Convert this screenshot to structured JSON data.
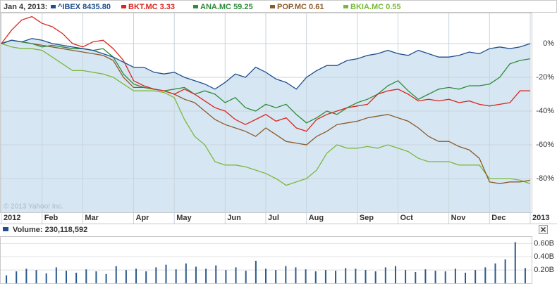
{
  "chart_data": [
    {
      "type": "line",
      "date_label": "Jan 4, 2013:",
      "annotation": "© 2013 Yahoo! Inc.",
      "categories": [
        "2012",
        null,
        null,
        null,
        "Feb",
        null,
        null,
        null,
        "Mar",
        null,
        null,
        null,
        null,
        "Apr",
        null,
        null,
        null,
        "May",
        null,
        null,
        null,
        null,
        "Jun",
        null,
        null,
        null,
        "Jul",
        null,
        null,
        null,
        "Aug",
        null,
        null,
        null,
        null,
        "Sep",
        null,
        null,
        null,
        "Oct",
        null,
        null,
        null,
        null,
        "Nov",
        null,
        null,
        null,
        "Dec",
        null,
        null,
        null,
        "2013"
      ],
      "ylim": [
        -100,
        20
      ],
      "yticks": [
        {
          "value": 0,
          "label": "0%"
        },
        {
          "value": -20,
          "label": "-20%"
        },
        {
          "value": -40,
          "label": "-40%"
        },
        {
          "value": -60,
          "label": "-60%"
        },
        {
          "value": -80,
          "label": "-80%"
        }
      ],
      "grid": true,
      "series": [
        {
          "name": "^IBEX",
          "quote": "8435.80",
          "color": "#1f4e8c",
          "area_color": "#d6e7f3",
          "values": [
            0,
            2,
            1,
            3,
            2,
            0,
            -1,
            -2,
            -3,
            -4,
            -6,
            -8,
            -11,
            -14,
            -14,
            -17,
            -18,
            -17,
            -20,
            -22,
            -24,
            -27,
            -23,
            -18,
            -20,
            -14,
            -17,
            -21,
            -23,
            -27,
            -20,
            -16,
            -13,
            -13,
            -10,
            -9,
            -7,
            -6,
            -4,
            -6,
            -7,
            -4,
            -6,
            -8,
            -8,
            -7,
            -5,
            -6,
            -3,
            -2,
            -3,
            -2,
            0
          ]
        },
        {
          "name": "BKT.MC",
          "quote": "3.33",
          "color": "#d9261c",
          "values": [
            0,
            8,
            14,
            16,
            12,
            10,
            6,
            0,
            -2,
            1,
            2,
            -3,
            -10,
            -22,
            -25,
            -27,
            -28,
            -30,
            -27,
            -30,
            -34,
            -38,
            -40,
            -45,
            -48,
            -45,
            -42,
            -46,
            -44,
            -50,
            -52,
            -45,
            -42,
            -40,
            -38,
            -37,
            -36,
            -30,
            -28,
            -27,
            -30,
            -34,
            -33,
            -34,
            -33,
            -35,
            -34,
            -36,
            -37,
            -36,
            -35,
            -28,
            -28
          ]
        },
        {
          "name": "ANA.MC",
          "quote": "59.25",
          "color": "#2e8b3a",
          "values": [
            0,
            2,
            1,
            0,
            -2,
            -1,
            -2,
            -3,
            -3,
            -4,
            -3,
            -8,
            -18,
            -24,
            -26,
            -27,
            -28,
            -27,
            -26,
            -30,
            -28,
            -30,
            -35,
            -32,
            -38,
            -40,
            -36,
            -38,
            -36,
            -42,
            -47,
            -44,
            -40,
            -42,
            -38,
            -35,
            -33,
            -30,
            -25,
            -22,
            -28,
            -33,
            -30,
            -27,
            -26,
            -27,
            -25,
            -25,
            -24,
            -20,
            -12,
            -10,
            -9
          ]
        },
        {
          "name": "POP.MC",
          "quote": "0.61",
          "color": "#8b5a2b",
          "values": [
            0,
            2,
            1,
            0,
            -1,
            -2,
            -3,
            -4,
            -5,
            -6,
            -7,
            -10,
            -20,
            -26,
            -26,
            -27,
            -28,
            -30,
            -33,
            -35,
            -40,
            -45,
            -48,
            -50,
            -52,
            -55,
            -50,
            -54,
            -58,
            -59,
            -60,
            -55,
            -52,
            -48,
            -47,
            -46,
            -44,
            -43,
            -42,
            -44,
            -46,
            -50,
            -55,
            -58,
            -58,
            -61,
            -63,
            -68,
            -82,
            -83,
            -82,
            -82,
            -81
          ]
        },
        {
          "name": "BKIA.MC",
          "quote": "0.55",
          "color": "#7ab83a",
          "values": [
            0,
            -2,
            -3,
            -3,
            -4,
            -8,
            -12,
            -16,
            -16,
            -17,
            -18,
            -20,
            -24,
            -28,
            -28,
            -28,
            -29,
            -32,
            -45,
            -55,
            -60,
            -70,
            -72,
            -72,
            -73,
            -75,
            -77,
            -80,
            -84,
            -82,
            -80,
            -75,
            -65,
            -60,
            -62,
            -62,
            -61,
            -62,
            -60,
            -62,
            -64,
            -68,
            -70,
            -70,
            -70,
            -72,
            -72,
            -72,
            -80,
            -80,
            -80,
            -81,
            -83
          ]
        }
      ]
    },
    {
      "type": "bar",
      "label": "Volume:",
      "last": "230,118,592",
      "color": "#2b5a8e",
      "ylim": [
        0,
        0.7
      ],
      "yticks": [
        {
          "value": 0.2,
          "label": "0.20B"
        },
        {
          "value": 0.4,
          "label": "0.40B"
        },
        {
          "value": 0.6,
          "label": "0.60B"
        }
      ],
      "values": [
        0.12,
        0.18,
        0.22,
        0.2,
        0.15,
        0.24,
        0.19,
        0.16,
        0.21,
        0.18,
        0.14,
        0.26,
        0.2,
        0.22,
        0.18,
        0.24,
        0.28,
        0.21,
        0.3,
        0.25,
        0.22,
        0.27,
        0.2,
        0.24,
        0.19,
        0.34,
        0.22,
        0.2,
        0.26,
        0.24,
        0.21,
        0.18,
        0.2,
        0.19,
        0.23,
        0.22,
        0.2,
        0.18,
        0.24,
        0.26,
        0.2,
        0.17,
        0.21,
        0.19,
        0.18,
        0.22,
        0.16,
        0.2,
        0.24,
        0.3,
        0.36,
        0.62,
        0.23
      ]
    }
  ]
}
